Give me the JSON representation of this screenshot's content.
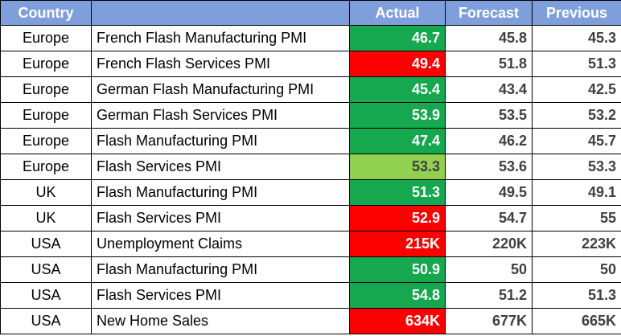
{
  "headers": {
    "country": "Country",
    "indicator": "",
    "actual": "Actual",
    "forecast": "Forecast",
    "previous": "Previous"
  },
  "colors": {
    "header_bg": "#7f9fdc",
    "beat": "#15a84f",
    "miss": "#fd0000",
    "inline": "#92d050"
  },
  "rows": [
    {
      "country": "Europe",
      "indicator": "French Flash Manufacturing PMI",
      "actual": "46.7",
      "forecast": "45.8",
      "previous": "45.3",
      "status": "green"
    },
    {
      "country": "Europe",
      "indicator": "French Flash Services PMI",
      "actual": "49.4",
      "forecast": "51.8",
      "previous": "51.3",
      "status": "red"
    },
    {
      "country": "Europe",
      "indicator": "German Flash Manufacturing PMI",
      "actual": "45.4",
      "forecast": "43.4",
      "previous": "42.5",
      "status": "green"
    },
    {
      "country": "Europe",
      "indicator": "German Flash Services PMI",
      "actual": "53.9",
      "forecast": "53.5",
      "previous": "53.2",
      "status": "green"
    },
    {
      "country": "Europe",
      "indicator": "Flash Manufacturing PMI",
      "actual": "47.4",
      "forecast": "46.2",
      "previous": "45.7",
      "status": "green"
    },
    {
      "country": "Europe",
      "indicator": "Flash Services PMI",
      "actual": "53.3",
      "forecast": "53.6",
      "previous": "53.3",
      "status": "lightgreen"
    },
    {
      "country": "UK",
      "indicator": "Flash Manufacturing PMI",
      "actual": "51.3",
      "forecast": "49.5",
      "previous": "49.1",
      "status": "green"
    },
    {
      "country": "UK",
      "indicator": "Flash Services PMI",
      "actual": "52.9",
      "forecast": "54.7",
      "previous": "55",
      "status": "red"
    },
    {
      "country": "USA",
      "indicator": "Unemployment Claims",
      "actual": "215K",
      "forecast": "220K",
      "previous": "223K",
      "status": "red"
    },
    {
      "country": "USA",
      "indicator": "Flash Manufacturing PMI",
      "actual": "50.9",
      "forecast": "50",
      "previous": "50",
      "status": "green"
    },
    {
      "country": "USA",
      "indicator": "Flash Services PMI",
      "actual": "54.8",
      "forecast": "51.2",
      "previous": "51.3",
      "status": "green"
    },
    {
      "country": "USA",
      "indicator": "New Home Sales",
      "actual": "634K",
      "forecast": "677K",
      "previous": "665K",
      "status": "red"
    }
  ]
}
